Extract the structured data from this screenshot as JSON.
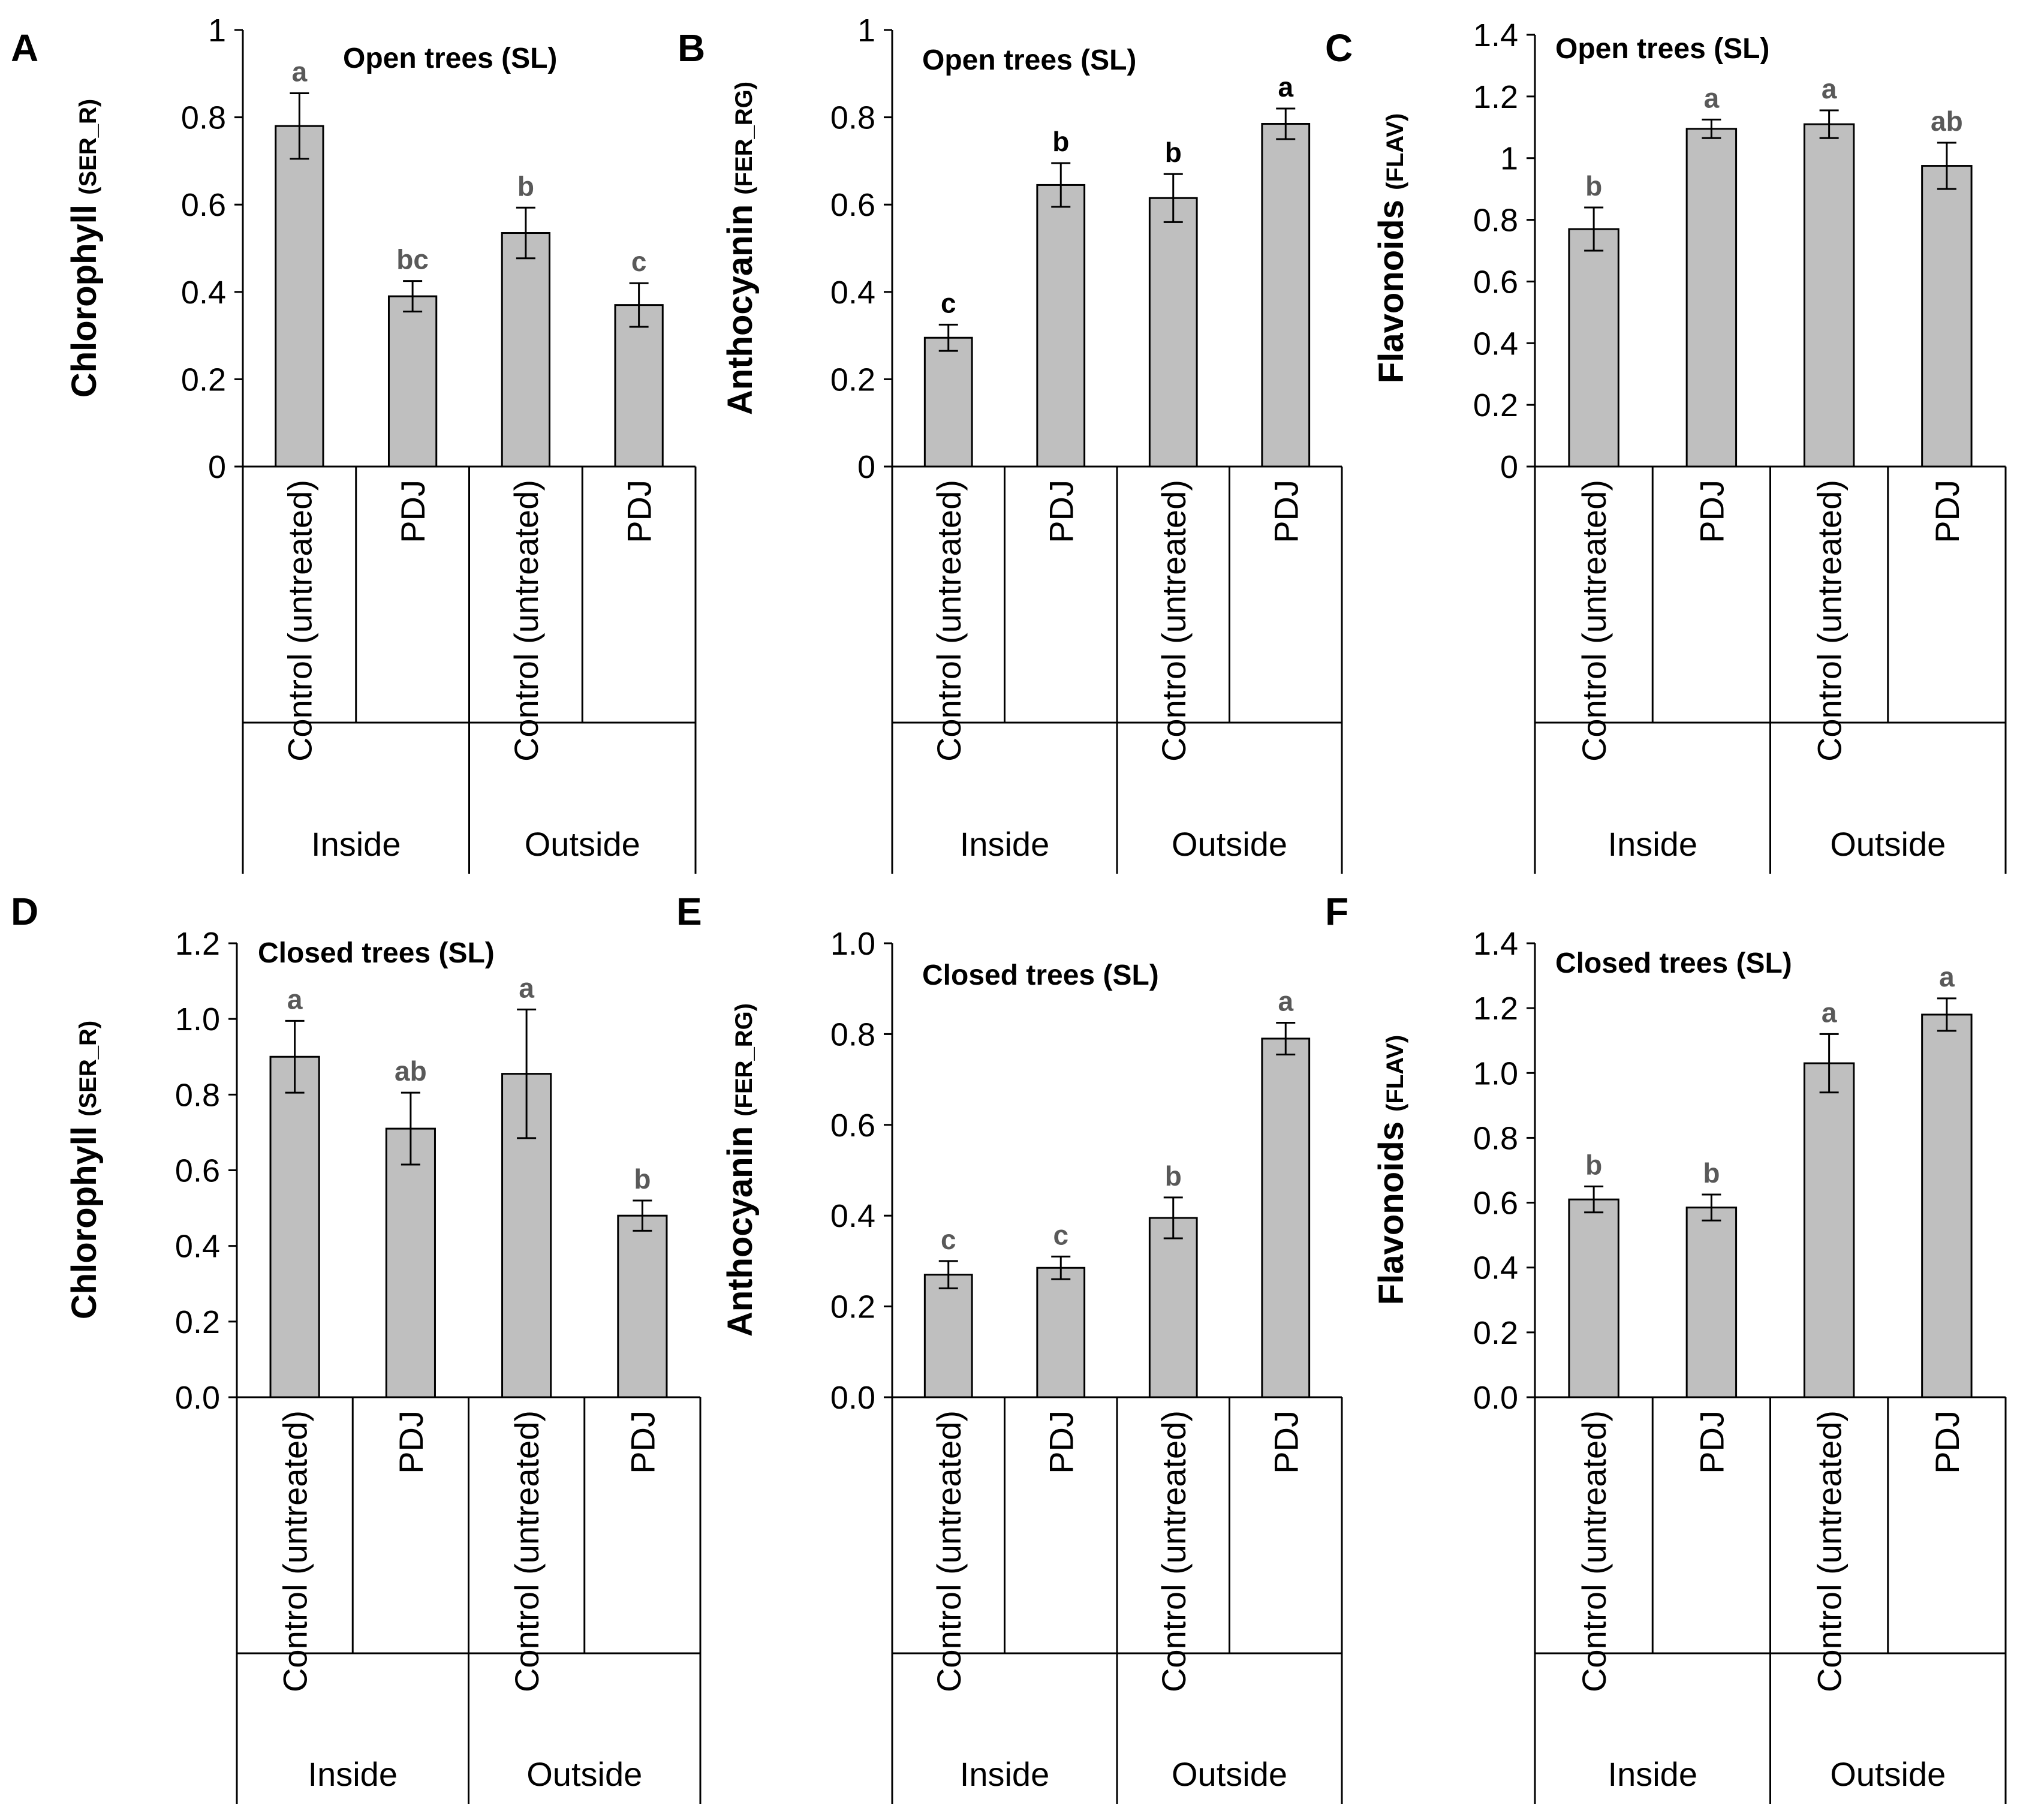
{
  "chart_data": [
    {
      "panel": "A",
      "type": "bar",
      "title": "Open trees (SL)",
      "ylabel": "Chlorophyll",
      "ylabel_sub": "(SER_R)",
      "ylim": [
        0,
        1
      ],
      "yticks": [
        "0",
        "0.2",
        "0.4",
        "0.6",
        "0.8",
        "1"
      ],
      "categories": [
        "Control (untreated)",
        "PDJ",
        "Control (untreated)",
        "PDJ"
      ],
      "groups": [
        "Inside",
        "Outside"
      ],
      "values": [
        0.78,
        0.39,
        0.535,
        0.37
      ],
      "errors": [
        0.075,
        0.035,
        0.058,
        0.05
      ],
      "significance": [
        "a",
        "bc",
        "b",
        "c"
      ],
      "significance_color": "#595959"
    },
    {
      "panel": "B",
      "type": "bar",
      "title": "Open trees (SL)",
      "ylabel": "Anthocyanin",
      "ylabel_sub": "(FER_RG)",
      "ylim": [
        0,
        1
      ],
      "yticks": [
        "0",
        "0.2",
        "0.4",
        "0.6",
        "0.8",
        "1"
      ],
      "categories": [
        "Control (untreated)",
        "PDJ",
        "Control (untreated)",
        "PDJ"
      ],
      "groups": [
        "Inside",
        "Outside"
      ],
      "values": [
        0.295,
        0.645,
        0.615,
        0.785
      ],
      "errors": [
        0.03,
        0.05,
        0.055,
        0.035
      ],
      "significance": [
        "c",
        "b",
        "b",
        "a"
      ],
      "significance_color": "#000000"
    },
    {
      "panel": "C",
      "type": "bar",
      "title": "Open trees (SL)",
      "ylabel": "Flavonoids",
      "ylabel_sub": "(FLAV)",
      "ylim": [
        0,
        1.4
      ],
      "yticks": [
        "0",
        "0.2",
        "0.4",
        "0.6",
        "0.8",
        "1",
        "1.2",
        "1.4"
      ],
      "categories": [
        "Control (untreated)",
        "PDJ",
        "Control (untreated)",
        "PDJ"
      ],
      "groups": [
        "Inside",
        "Outside"
      ],
      "values": [
        0.77,
        1.095,
        1.11,
        0.975
      ],
      "errors": [
        0.07,
        0.03,
        0.045,
        0.075
      ],
      "significance": [
        "b",
        "a",
        "a",
        "ab"
      ],
      "significance_color": "#595959"
    },
    {
      "panel": "D",
      "type": "bar",
      "title": "Closed trees (SL)",
      "ylabel": "Chlorophyll",
      "ylabel_sub": "(SER_R)",
      "ylim": [
        0,
        1.2
      ],
      "yticks": [
        "0.0",
        "0.2",
        "0.4",
        "0.6",
        "0.8",
        "1.0",
        "1.2"
      ],
      "categories": [
        "Control (untreated)",
        "PDJ",
        "Control (untreated)",
        "PDJ"
      ],
      "groups": [
        "Inside",
        "Outside"
      ],
      "values": [
        0.9,
        0.71,
        0.855,
        0.48
      ],
      "errors": [
        0.095,
        0.095,
        0.17,
        0.04
      ],
      "significance": [
        "a",
        "ab",
        "a",
        "b"
      ],
      "significance_color": "#595959"
    },
    {
      "panel": "E",
      "type": "bar",
      "title": "Closed trees (SL)",
      "ylabel": "Anthocyanin",
      "ylabel_sub": "(FER_RG)",
      "ylim": [
        0,
        1.0
      ],
      "yticks": [
        "0.0",
        "0.2",
        "0.4",
        "0.6",
        "0.8",
        "1.0"
      ],
      "categories": [
        "Control (untreated)",
        "PDJ",
        "Control (untreated)",
        "PDJ"
      ],
      "groups": [
        "Inside",
        "Outside"
      ],
      "values": [
        0.27,
        0.285,
        0.395,
        0.79
      ],
      "errors": [
        0.03,
        0.025,
        0.045,
        0.035
      ],
      "significance": [
        "c",
        "c",
        "b",
        "a"
      ],
      "significance_color": "#595959"
    },
    {
      "panel": "F",
      "type": "bar",
      "title": "Closed trees (SL)",
      "ylabel": "Flavonoids",
      "ylabel_sub": "(FLAV)",
      "ylim": [
        0,
        1.4
      ],
      "yticks": [
        "0.0",
        "0.2",
        "0.4",
        "0.6",
        "0.8",
        "1.0",
        "1.2",
        "1.4"
      ],
      "categories": [
        "Control (untreated)",
        "PDJ",
        "Control (untreated)",
        "PDJ"
      ],
      "groups": [
        "Inside",
        "Outside"
      ],
      "values": [
        0.61,
        0.585,
        1.03,
        1.18
      ],
      "errors": [
        0.04,
        0.04,
        0.09,
        0.05
      ],
      "significance": [
        "b",
        "b",
        "a",
        "a"
      ],
      "significance_color": "#595959"
    }
  ]
}
